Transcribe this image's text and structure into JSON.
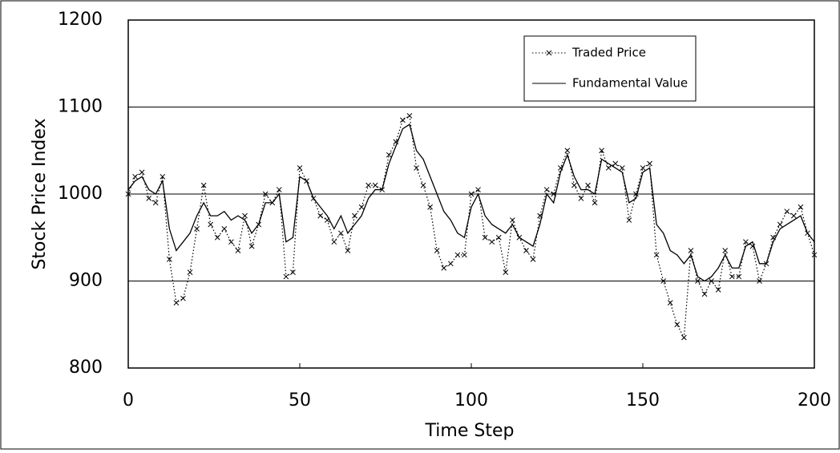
{
  "chart_data": {
    "type": "line",
    "xlabel": "Time Step",
    "ylabel": "Stock Price Index",
    "x": [
      0,
      2,
      4,
      6,
      8,
      10,
      12,
      14,
      16,
      18,
      20,
      22,
      24,
      26,
      28,
      30,
      32,
      34,
      36,
      38,
      40,
      42,
      44,
      46,
      48,
      50,
      52,
      54,
      56,
      58,
      60,
      62,
      64,
      66,
      68,
      70,
      72,
      74,
      76,
      78,
      80,
      82,
      84,
      86,
      88,
      90,
      92,
      94,
      96,
      98,
      100,
      102,
      104,
      106,
      108,
      110,
      112,
      114,
      116,
      118,
      120,
      122,
      124,
      126,
      128,
      130,
      132,
      134,
      136,
      138,
      140,
      142,
      144,
      146,
      148,
      150,
      152,
      154,
      156,
      158,
      160,
      162,
      164,
      166,
      168,
      170,
      172,
      174,
      176,
      178,
      180,
      182,
      184,
      186,
      188,
      190,
      192,
      194,
      196,
      198,
      200
    ],
    "series": [
      {
        "name": "Traded Price",
        "color": "#000000",
        "style": "dotted",
        "marker": "x",
        "values": [
          1000,
          1020,
          1025,
          995,
          990,
          1020,
          925,
          875,
          880,
          910,
          960,
          1010,
          965,
          950,
          960,
          945,
          935,
          975,
          940,
          965,
          1000,
          990,
          1005,
          905,
          910,
          1030,
          1015,
          995,
          975,
          970,
          945,
          955,
          935,
          975,
          985,
          1010,
          1010,
          1005,
          1045,
          1060,
          1085,
          1090,
          1030,
          1010,
          985,
          935,
          915,
          920,
          930,
          930,
          1000,
          1005,
          950,
          945,
          950,
          910,
          970,
          950,
          935,
          925,
          975,
          1005,
          1000,
          1030,
          1050,
          1010,
          995,
          1010,
          990,
          1050,
          1030,
          1035,
          1030,
          970,
          1000,
          1030,
          1035,
          930,
          900,
          875,
          850,
          835,
          935,
          900,
          885,
          900,
          890,
          935,
          905,
          905,
          945,
          940,
          900,
          920,
          950,
          965,
          980,
          975,
          985,
          955,
          930
        ]
      },
      {
        "name": "Fundamental Value",
        "color": "#000000",
        "style": "solid",
        "values": [
          1005,
          1015,
          1020,
          1005,
          1000,
          1015,
          960,
          935,
          945,
          955,
          975,
          990,
          975,
          975,
          980,
          970,
          975,
          970,
          955,
          965,
          990,
          990,
          1000,
          945,
          950,
          1020,
          1015,
          995,
          985,
          975,
          960,
          975,
          955,
          965,
          975,
          995,
          1005,
          1005,
          1035,
          1055,
          1075,
          1080,
          1050,
          1040,
          1020,
          1000,
          980,
          970,
          955,
          950,
          985,
          1000,
          975,
          965,
          960,
          955,
          965,
          950,
          945,
          940,
          965,
          1000,
          990,
          1025,
          1045,
          1020,
          1005,
          1005,
          1000,
          1040,
          1035,
          1030,
          1025,
          990,
          995,
          1025,
          1030,
          965,
          955,
          935,
          930,
          920,
          930,
          905,
          900,
          905,
          915,
          930,
          915,
          915,
          940,
          945,
          920,
          920,
          945,
          960,
          965,
          970,
          975,
          955,
          945
        ]
      }
    ],
    "xlim": [
      0,
      200
    ],
    "xticks": [
      0,
      50,
      100,
      150,
      200
    ],
    "ylim": [
      800,
      1200
    ],
    "yticks": [
      800,
      900,
      1000,
      1100,
      1200
    ],
    "grid": true,
    "legend": "upper right"
  }
}
